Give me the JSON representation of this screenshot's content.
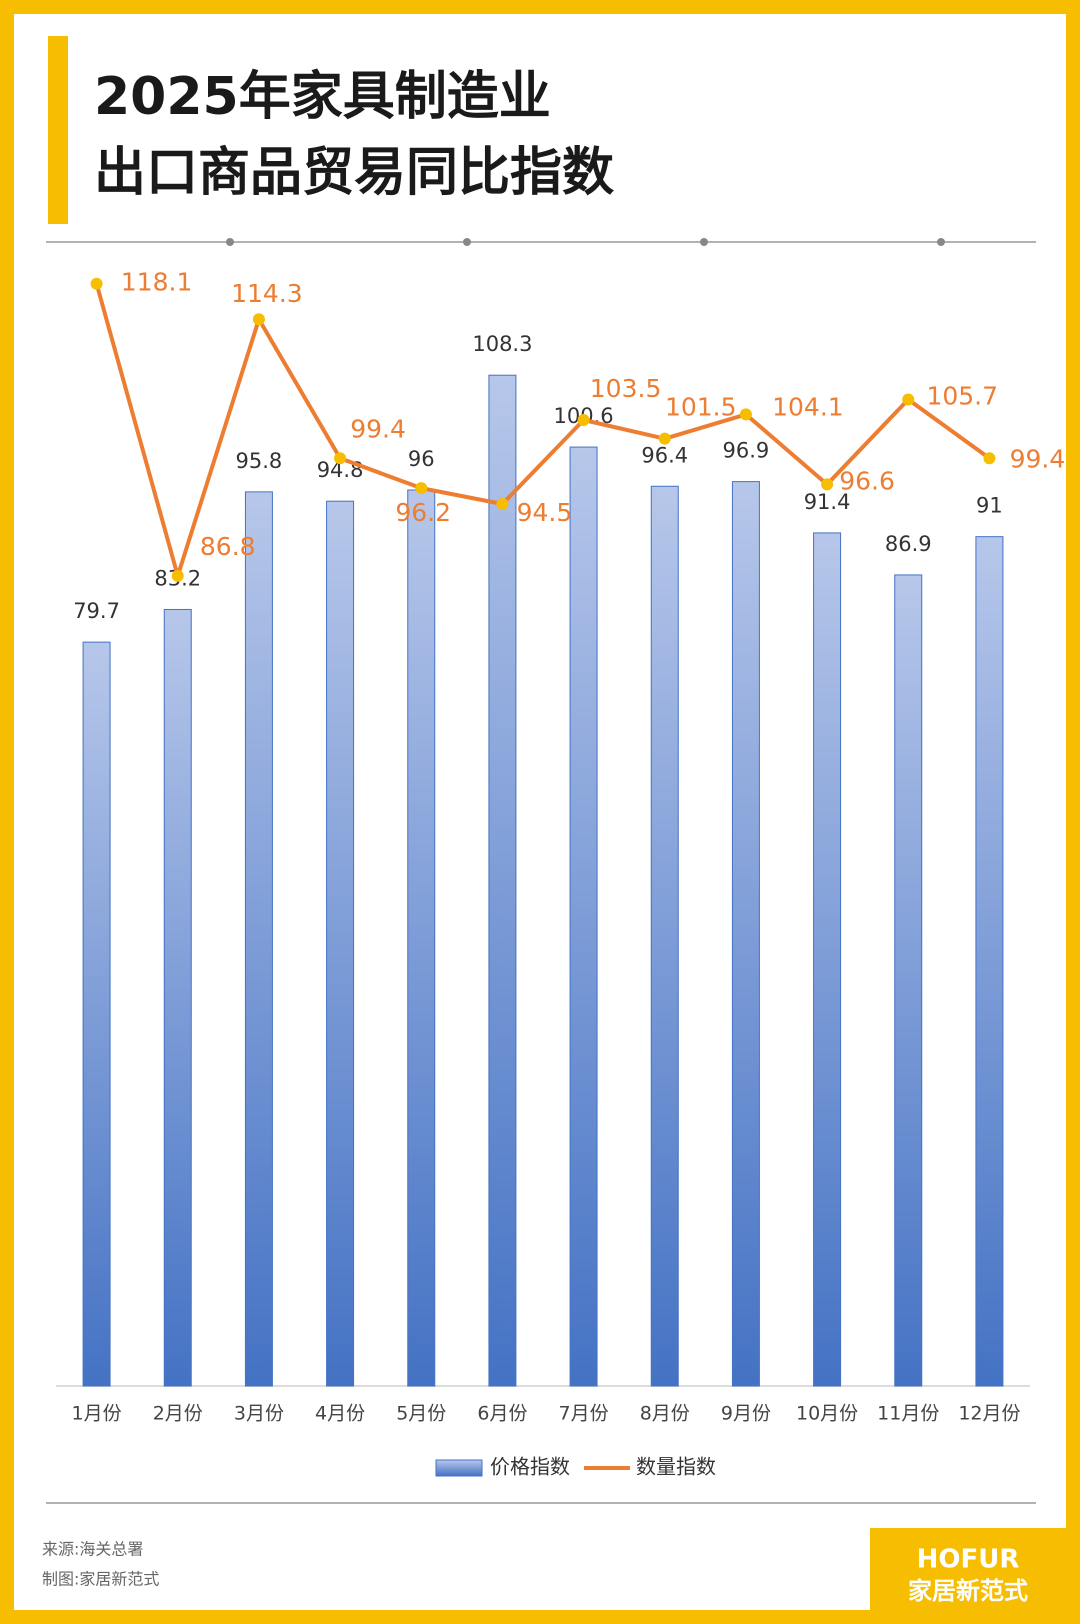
{
  "chart_data": {
    "type": "bar-line",
    "title": [
      "2025年家具制造业",
      "出口商品贸易同比指数"
    ],
    "categories": [
      "1月份",
      "2月份",
      "3月份",
      "4月份",
      "5月份",
      "6月份",
      "7月份",
      "8月份",
      "9月份",
      "10月份",
      "11月份",
      "12月份"
    ],
    "series": [
      {
        "name": "价格指数",
        "type": "bar",
        "color": "#4472c4",
        "values": [
          79.7,
          83.2,
          95.8,
          94.8,
          96,
          108.3,
          100.6,
          96.4,
          96.9,
          91.4,
          86.9,
          91
        ]
      },
      {
        "name": "数量指数",
        "type": "line",
        "color": "#ed7d31",
        "values": [
          118.1,
          86.8,
          114.3,
          99.4,
          96.2,
          94.5,
          103.5,
          101.5,
          104.1,
          96.6,
          105.7,
          99.4
        ]
      }
    ],
    "ylim": [
      0,
      120
    ],
    "source": "来源:海关总署",
    "maker": "制图:家居新范式",
    "logo": [
      "HOFUR",
      "家居新范式"
    ]
  }
}
